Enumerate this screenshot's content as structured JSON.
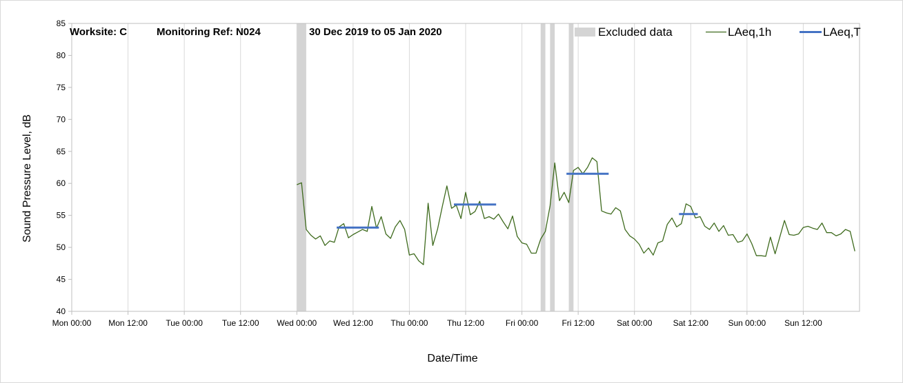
{
  "chart_data": {
    "type": "line",
    "title": {
      "worksite": "Worksite: C",
      "monitoring_ref": "Monitoring Ref: N024",
      "date_range": "30 Dec 2019 to 05 Jan 2020"
    },
    "xlabel": "Date/Time",
    "ylabel": "Sound Pressure Level, dB",
    "ylim": [
      40,
      85
    ],
    "y_ticks": [
      40,
      45,
      50,
      55,
      60,
      65,
      70,
      75,
      80,
      85
    ],
    "x_range_hours": [
      0,
      168
    ],
    "x_ticks": [
      {
        "hour": 0,
        "label": "Mon 00:00"
      },
      {
        "hour": 12,
        "label": "Mon 12:00"
      },
      {
        "hour": 24,
        "label": "Tue 00:00"
      },
      {
        "hour": 36,
        "label": "Tue 12:00"
      },
      {
        "hour": 48,
        "label": "Wed 00:00"
      },
      {
        "hour": 60,
        "label": "Wed 12:00"
      },
      {
        "hour": 72,
        "label": "Thu 00:00"
      },
      {
        "hour": 84,
        "label": "Thu 12:00"
      },
      {
        "hour": 96,
        "label": "Fri 00:00"
      },
      {
        "hour": 108,
        "label": "Fri 12:00"
      },
      {
        "hour": 120,
        "label": "Sat 00:00"
      },
      {
        "hour": 132,
        "label": "Sat 12:00"
      },
      {
        "hour": 144,
        "label": "Sun 00:00"
      },
      {
        "hour": 156,
        "label": "Sun 12:00"
      }
    ],
    "grid": "vertical",
    "legend": {
      "position": "top-right",
      "entries": [
        {
          "name": "Excluded data",
          "kind": "band"
        },
        {
          "name": "LAeq,1h",
          "kind": "line"
        },
        {
          "name": "LAeq,T",
          "kind": "segment"
        }
      ]
    },
    "colors": {
      "excluded": "#d4d4d4",
      "laeq_1h": "#3e6a1d",
      "laeq_t": "#4472c4",
      "grid": "#d9d9d9"
    },
    "excluded_periods": [
      [
        48,
        50
      ],
      [
        100,
        101
      ],
      [
        102,
        103
      ],
      [
        106,
        107
      ]
    ],
    "series": [
      {
        "name": "LAeq,1h",
        "x": [
          48,
          49,
          50,
          51,
          52,
          53,
          54,
          55,
          56,
          57,
          58,
          59,
          60,
          61,
          62,
          63,
          64,
          65,
          66,
          67,
          68,
          69,
          70,
          71,
          72,
          73,
          74,
          75,
          76,
          77,
          78,
          79,
          80,
          81,
          82,
          83,
          84,
          85,
          86,
          87,
          88,
          89,
          90,
          91,
          92,
          93,
          94,
          95,
          96,
          97,
          98,
          99,
          100,
          101,
          102,
          103,
          104,
          105,
          106,
          107,
          108,
          109,
          110,
          111,
          112,
          113,
          114,
          115,
          116,
          117,
          118,
          119,
          120,
          121,
          122,
          123,
          124,
          125,
          126,
          127,
          128,
          129,
          130,
          131,
          132,
          133,
          134,
          135,
          136,
          137,
          138,
          139,
          140,
          141,
          142,
          143,
          144,
          145,
          146,
          147,
          148,
          149,
          150,
          151,
          152,
          153,
          154,
          155,
          156,
          157,
          158,
          159,
          160,
          161,
          162,
          163,
          164,
          165,
          166,
          167
        ],
        "values": [
          59.8,
          60.1,
          52.8,
          51.9,
          51.3,
          51.8,
          50.3,
          51.0,
          50.8,
          53.2,
          53.7,
          51.5,
          52.0,
          52.4,
          52.8,
          52.5,
          56.4,
          53.0,
          54.8,
          52.1,
          51.4,
          53.2,
          54.2,
          52.8,
          48.8,
          49.0,
          47.9,
          47.3,
          56.9,
          50.3,
          52.8,
          56.3,
          59.6,
          56.1,
          56.6,
          54.5,
          58.6,
          55.1,
          55.6,
          57.2,
          54.5,
          54.8,
          54.4,
          55.2,
          54.0,
          52.9,
          54.9,
          51.7,
          50.7,
          50.5,
          49.1,
          49.1,
          51.3,
          52.5,
          56.5,
          63.2,
          57.3,
          58.6,
          57.0,
          62.0,
          62.5,
          61.5,
          62.5,
          64.0,
          63.4,
          55.7,
          55.4,
          55.2,
          56.2,
          55.7,
          52.8,
          51.8,
          51.3,
          50.5,
          49.1,
          49.9,
          48.8,
          50.7,
          51.0,
          53.6,
          54.6,
          53.2,
          53.7,
          56.8,
          56.4,
          54.6,
          54.8,
          53.3,
          52.8,
          53.8,
          52.5,
          53.4,
          51.9,
          52.0,
          50.8,
          51.0,
          52.1,
          50.6,
          48.7,
          48.7,
          48.6,
          51.6,
          49.0,
          51.6,
          54.2,
          52.0,
          51.9,
          52.1,
          53.1,
          53.3,
          53.0,
          52.8,
          53.8,
          52.3,
          52.3,
          51.8,
          52.1,
          52.8,
          52.5,
          49.4
        ]
      },
      {
        "name": "LAeq,T",
        "segments": [
          {
            "x": [
              56.5,
              65.5
            ],
            "value": 53.1
          },
          {
            "x": [
              81.5,
              90.5
            ],
            "value": 56.7
          },
          {
            "x": [
              105.5,
              114.5
            ],
            "value": 61.5
          },
          {
            "x": [
              129.5,
              133.5
            ],
            "value": 55.2
          }
        ]
      }
    ]
  }
}
